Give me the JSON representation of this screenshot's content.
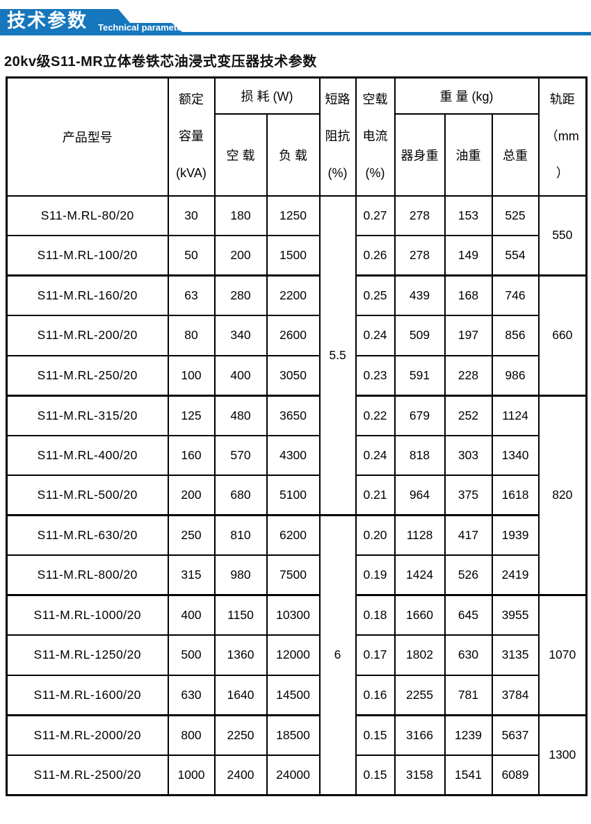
{
  "banner": {
    "title_cn": "技术参数",
    "title_en": "Technical parameter",
    "color": "#1677bd"
  },
  "page_title": "20kv级S11-MR立体卷铁芯油浸式变压器技术参数",
  "table": {
    "headers": {
      "product_model": "产品型号",
      "rated_capacity": "额定\n容量\n(kVA)",
      "loss_group": "损 耗 (W)",
      "no_load_loss": "空 载",
      "load_loss": "负 载",
      "impedance": "短路\n阻抗\n(%)",
      "no_load_current": "空载\n电流\n(%)",
      "weight_group": "重 量 (kg)",
      "body_weight": "器身重",
      "oil_weight": "油重",
      "total_weight": "总重",
      "gauge": "轨距\n（mm\n）"
    },
    "rows": [
      {
        "model": "S11-M.RL-80/20",
        "capacity_kva": "30",
        "no_load_loss_w": "180",
        "load_loss_w": "1250",
        "no_load_current_pct": "0.27",
        "body_weight_kg": "278",
        "oil_weight_kg": "153",
        "total_weight_kg": "525"
      },
      {
        "model": "S11-M.RL-100/20",
        "capacity_kva": "50",
        "no_load_loss_w": "200",
        "load_loss_w": "1500",
        "no_load_current_pct": "0.26",
        "body_weight_kg": "278",
        "oil_weight_kg": "149",
        "total_weight_kg": "554"
      },
      {
        "model": "S11-M.RL-160/20",
        "capacity_kva": "63",
        "no_load_loss_w": "280",
        "load_loss_w": "2200",
        "no_load_current_pct": "0.25",
        "body_weight_kg": "439",
        "oil_weight_kg": "168",
        "total_weight_kg": "746"
      },
      {
        "model": "S11-M.RL-200/20",
        "capacity_kva": "80",
        "no_load_loss_w": "340",
        "load_loss_w": "2600",
        "no_load_current_pct": "0.24",
        "body_weight_kg": "509",
        "oil_weight_kg": "197",
        "total_weight_kg": "856"
      },
      {
        "model": "S11-M.RL-250/20",
        "capacity_kva": "100",
        "no_load_loss_w": "400",
        "load_loss_w": "3050",
        "no_load_current_pct": "0.23",
        "body_weight_kg": "591",
        "oil_weight_kg": "228",
        "total_weight_kg": "986"
      },
      {
        "model": "S11-M.RL-315/20",
        "capacity_kva": "125",
        "no_load_loss_w": "480",
        "load_loss_w": "3650",
        "no_load_current_pct": "0.22",
        "body_weight_kg": "679",
        "oil_weight_kg": "252",
        "total_weight_kg": "1124"
      },
      {
        "model": "S11-M.RL-400/20",
        "capacity_kva": "160",
        "no_load_loss_w": "570",
        "load_loss_w": "4300",
        "no_load_current_pct": "0.24",
        "body_weight_kg": "818",
        "oil_weight_kg": "303",
        "total_weight_kg": "1340"
      },
      {
        "model": "S11-M.RL-500/20",
        "capacity_kva": "200",
        "no_load_loss_w": "680",
        "load_loss_w": "5100",
        "no_load_current_pct": "0.21",
        "body_weight_kg": "964",
        "oil_weight_kg": "375",
        "total_weight_kg": "1618"
      },
      {
        "model": "S11-M.RL-630/20",
        "capacity_kva": "250",
        "no_load_loss_w": "810",
        "load_loss_w": "6200",
        "no_load_current_pct": "0.20",
        "body_weight_kg": "1128",
        "oil_weight_kg": "417",
        "total_weight_kg": "1939"
      },
      {
        "model": "S11-M.RL-800/20",
        "capacity_kva": "315",
        "no_load_loss_w": "980",
        "load_loss_w": "7500",
        "no_load_current_pct": "0.19",
        "body_weight_kg": "1424",
        "oil_weight_kg": "526",
        "total_weight_kg": "2419"
      },
      {
        "model": "S11-M.RL-1000/20",
        "capacity_kva": "400",
        "no_load_loss_w": "1150",
        "load_loss_w": "10300",
        "no_load_current_pct": "0.18",
        "body_weight_kg": "1660",
        "oil_weight_kg": "645",
        "total_weight_kg": "3955"
      },
      {
        "model": "S11-M.RL-1250/20",
        "capacity_kva": "500",
        "no_load_loss_w": "1360",
        "load_loss_w": "12000",
        "no_load_current_pct": "0.17",
        "body_weight_kg": "1802",
        "oil_weight_kg": "630",
        "total_weight_kg": "3135"
      },
      {
        "model": "S11-M.RL-1600/20",
        "capacity_kva": "630",
        "no_load_loss_w": "1640",
        "load_loss_w": "14500",
        "no_load_current_pct": "0.16",
        "body_weight_kg": "2255",
        "oil_weight_kg": "781",
        "total_weight_kg": "3784"
      },
      {
        "model": "S11-M.RL-2000/20",
        "capacity_kva": "800",
        "no_load_loss_w": "2250",
        "load_loss_w": "18500",
        "no_load_current_pct": "0.15",
        "body_weight_kg": "3166",
        "oil_weight_kg": "1239",
        "total_weight_kg": "5637"
      },
      {
        "model": "S11-M.RL-2500/20",
        "capacity_kva": "1000",
        "no_load_loss_w": "2400",
        "load_loss_w": "24000",
        "no_load_current_pct": "0.15",
        "body_weight_kg": "3158",
        "oil_weight_kg": "1541",
        "total_weight_kg": "6089"
      }
    ],
    "impedance_spans": [
      {
        "value": "5.5",
        "row_start": 1,
        "row_count": 8
      },
      {
        "value": "6",
        "row_start": 9,
        "row_count": 7
      }
    ],
    "gauge_spans": [
      {
        "value": "550",
        "row_start": 1,
        "row_count": 2
      },
      {
        "value": "660",
        "row_start": 3,
        "row_count": 3
      },
      {
        "value": "820",
        "row_start": 6,
        "row_count": 5
      },
      {
        "value": "1070",
        "row_start": 11,
        "row_count": 3
      },
      {
        "value": "1300",
        "row_start": 14,
        "row_count": 2
      }
    ]
  }
}
